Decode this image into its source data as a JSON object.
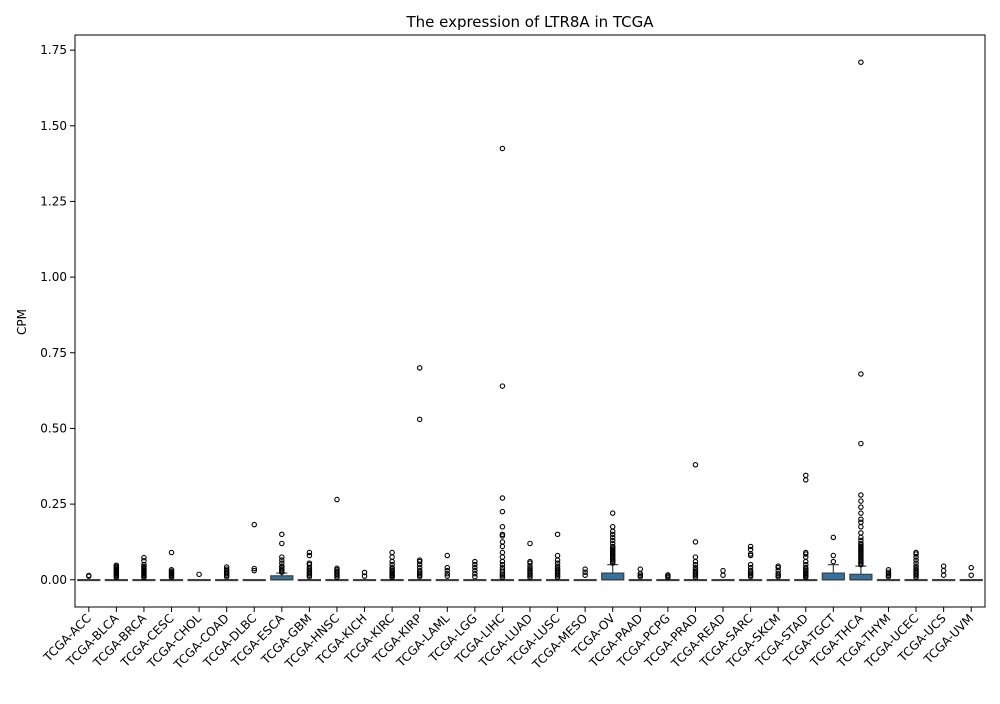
{
  "chart_data": {
    "type": "box",
    "title": "The expression of LTR8A in TCGA",
    "xlabel": "",
    "ylabel": "CPM",
    "ylim": [
      -0.09,
      1.8
    ],
    "yticks": [
      0.0,
      0.25,
      0.5,
      0.75,
      1.0,
      1.25,
      1.5,
      1.75
    ],
    "ytick_labels": [
      "0.00",
      "0.25",
      "0.50",
      "0.75",
      "1.00",
      "1.25",
      "1.50",
      "1.75"
    ],
    "box_color": "#3274a1",
    "categories": [
      "TCGA-ACC",
      "TCGA-BLCA",
      "TCGA-BRCA",
      "TCGA-CESC",
      "TCGA-CHOL",
      "TCGA-COAD",
      "TCGA-DLBC",
      "TCGA-ESCA",
      "TCGA-GBM",
      "TCGA-HNSC",
      "TCGA-KICH",
      "TCGA-KIRC",
      "TCGA-KIRP",
      "TCGA-LAML",
      "TCGA-LGG",
      "TCGA-LIHC",
      "TCGA-LUAD",
      "TCGA-LUSC",
      "TCGA-MESO",
      "TCGA-OV",
      "TCGA-PAAD",
      "TCGA-PCPG",
      "TCGA-PRAD",
      "TCGA-READ",
      "TCGA-SARC",
      "TCGA-SKCM",
      "TCGA-STAD",
      "TCGA-TGCT",
      "TCGA-THCA",
      "TCGA-THYM",
      "TCGA-UCEC",
      "TCGA-UCS",
      "TCGA-UVM"
    ],
    "boxes": [
      {
        "q1": 0,
        "median": 0,
        "q3": 0,
        "whisker_low": 0,
        "whisker_high": 0,
        "outliers": [
          0.012,
          0.014
        ]
      },
      {
        "q1": 0,
        "median": 0,
        "q3": 0,
        "whisker_low": 0,
        "whisker_high": 0,
        "outliers": [
          0.008,
          0.012,
          0.016,
          0.02,
          0.024,
          0.028,
          0.032,
          0.036,
          0.04,
          0.044,
          0.048
        ]
      },
      {
        "q1": 0,
        "median": 0,
        "q3": 0,
        "whisker_low": 0,
        "whisker_high": 0,
        "outliers": [
          0.008,
          0.012,
          0.016,
          0.02,
          0.024,
          0.028,
          0.032,
          0.036,
          0.04,
          0.044,
          0.05,
          0.063,
          0.073
        ]
      },
      {
        "q1": 0,
        "median": 0,
        "q3": 0,
        "whisker_low": 0,
        "whisker_high": 0,
        "outliers": [
          0.008,
          0.012,
          0.016,
          0.02,
          0.024,
          0.028,
          0.033,
          0.09
        ]
      },
      {
        "q1": 0,
        "median": 0,
        "q3": 0,
        "whisker_low": 0,
        "whisker_high": 0,
        "outliers": [
          0.018
        ]
      },
      {
        "q1": 0,
        "median": 0,
        "q3": 0,
        "whisker_low": 0,
        "whisker_high": 0,
        "outliers": [
          0.01,
          0.015,
          0.02,
          0.025,
          0.03,
          0.035,
          0.042
        ]
      },
      {
        "q1": 0,
        "median": 0,
        "q3": 0,
        "whisker_low": 0,
        "whisker_high": 0,
        "outliers": [
          0.03,
          0.037,
          0.182
        ]
      },
      {
        "q1": 0,
        "median": 0,
        "q3": 0.013,
        "whisker_low": 0,
        "whisker_high": 0.022,
        "outliers": [
          0.025,
          0.03,
          0.035,
          0.04,
          0.045,
          0.055,
          0.065,
          0.075,
          0.12,
          0.15
        ]
      },
      {
        "q1": 0,
        "median": 0,
        "q3": 0,
        "whisker_low": 0,
        "whisker_high": 0,
        "outliers": [
          0.01,
          0.015,
          0.02,
          0.025,
          0.03,
          0.035,
          0.04,
          0.05,
          0.055,
          0.08,
          0.09
        ]
      },
      {
        "q1": 0,
        "median": 0,
        "q3": 0,
        "whisker_low": 0,
        "whisker_high": 0,
        "outliers": [
          0.008,
          0.013,
          0.018,
          0.023,
          0.028,
          0.033,
          0.038,
          0.265
        ]
      },
      {
        "q1": 0,
        "median": 0,
        "q3": 0,
        "whisker_low": 0,
        "whisker_high": 0,
        "outliers": [
          0.012,
          0.024
        ]
      },
      {
        "q1": 0,
        "median": 0,
        "q3": 0,
        "whisker_low": 0,
        "whisker_high": 0,
        "outliers": [
          0.008,
          0.012,
          0.016,
          0.02,
          0.025,
          0.03,
          0.035,
          0.04,
          0.05,
          0.06,
          0.075,
          0.09
        ]
      },
      {
        "q1": 0,
        "median": 0,
        "q3": 0,
        "whisker_low": 0,
        "whisker_high": 0,
        "outliers": [
          0.01,
          0.015,
          0.02,
          0.025,
          0.03,
          0.04,
          0.05,
          0.06,
          0.065,
          0.53,
          0.7
        ]
      },
      {
        "q1": 0,
        "median": 0,
        "q3": 0,
        "whisker_low": 0,
        "whisker_high": 0,
        "outliers": [
          0.012,
          0.02,
          0.03,
          0.04,
          0.08
        ]
      },
      {
        "q1": 0,
        "median": 0,
        "q3": 0,
        "whisker_low": 0,
        "whisker_high": 0,
        "outliers": [
          0.01,
          0.02,
          0.03,
          0.04,
          0.05,
          0.06
        ]
      },
      {
        "q1": 0,
        "median": 0,
        "q3": 0,
        "whisker_low": 0,
        "whisker_high": 0,
        "outliers": [
          0.008,
          0.013,
          0.018,
          0.025,
          0.032,
          0.04,
          0.05,
          0.06,
          0.075,
          0.09,
          0.11,
          0.125,
          0.145,
          0.15,
          0.175,
          0.225,
          0.27,
          0.64,
          1.425
        ]
      },
      {
        "q1": 0,
        "median": 0,
        "q3": 0,
        "whisker_low": 0,
        "whisker_high": 0,
        "outliers": [
          0.008,
          0.013,
          0.018,
          0.023,
          0.028,
          0.033,
          0.038,
          0.045,
          0.055,
          0.06,
          0.12
        ]
      },
      {
        "q1": 0,
        "median": 0,
        "q3": 0,
        "whisker_low": 0,
        "whisker_high": 0,
        "outliers": [
          0.008,
          0.013,
          0.018,
          0.023,
          0.028,
          0.033,
          0.038,
          0.045,
          0.055,
          0.065,
          0.08,
          0.15
        ]
      },
      {
        "q1": 0,
        "median": 0,
        "q3": 0,
        "whisker_low": 0,
        "whisker_high": 0,
        "outliers": [
          0.015,
          0.025,
          0.035
        ]
      },
      {
        "q1": 0,
        "median": 0,
        "q3": 0.022,
        "whisker_low": 0,
        "whisker_high": 0.05,
        "outliers": [
          0.055,
          0.06,
          0.065,
          0.07,
          0.075,
          0.08,
          0.085,
          0.09,
          0.095,
          0.1,
          0.105,
          0.11,
          0.12,
          0.13,
          0.14,
          0.15,
          0.16,
          0.175,
          0.22
        ]
      },
      {
        "q1": 0,
        "median": 0,
        "q3": 0,
        "whisker_low": 0,
        "whisker_high": 0,
        "outliers": [
          0.01,
          0.015,
          0.02,
          0.035
        ]
      },
      {
        "q1": 0,
        "median": 0,
        "q3": 0,
        "whisker_low": 0,
        "whisker_high": 0,
        "outliers": [
          0.008,
          0.012,
          0.016
        ]
      },
      {
        "q1": 0,
        "median": 0,
        "q3": 0,
        "whisker_low": 0,
        "whisker_high": 0,
        "outliers": [
          0.008,
          0.013,
          0.018,
          0.023,
          0.028,
          0.033,
          0.04,
          0.05,
          0.06,
          0.075,
          0.125,
          0.38
        ]
      },
      {
        "q1": 0,
        "median": 0,
        "q3": 0,
        "whisker_low": 0,
        "whisker_high": 0,
        "outliers": [
          0.015,
          0.03
        ]
      },
      {
        "q1": 0,
        "median": 0,
        "q3": 0,
        "whisker_low": 0,
        "whisker_high": 0,
        "outliers": [
          0.01,
          0.015,
          0.02,
          0.025,
          0.03,
          0.04,
          0.05,
          0.08,
          0.085,
          0.1,
          0.11
        ]
      },
      {
        "q1": 0,
        "median": 0,
        "q3": 0,
        "whisker_low": 0,
        "whisker_high": 0,
        "outliers": [
          0.01,
          0.015,
          0.02,
          0.03,
          0.04,
          0.045
        ]
      },
      {
        "q1": 0,
        "median": 0,
        "q3": 0,
        "whisker_low": 0,
        "whisker_high": 0,
        "outliers": [
          0.008,
          0.012,
          0.016,
          0.02,
          0.025,
          0.03,
          0.035,
          0.04,
          0.05,
          0.06,
          0.075,
          0.085,
          0.09,
          0.33,
          0.345
        ]
      },
      {
        "q1": 0,
        "median": 0,
        "q3": 0.022,
        "whisker_low": 0,
        "whisker_high": 0.05,
        "outliers": [
          0.06,
          0.08,
          0.14
        ]
      },
      {
        "q1": 0,
        "median": 0,
        "q3": 0.018,
        "whisker_low": 0,
        "whisker_high": 0.045,
        "outliers": [
          0.05,
          0.055,
          0.06,
          0.065,
          0.07,
          0.075,
          0.08,
          0.085,
          0.09,
          0.095,
          0.1,
          0.105,
          0.11,
          0.115,
          0.12,
          0.13,
          0.14,
          0.155,
          0.175,
          0.19,
          0.2,
          0.22,
          0.24,
          0.26,
          0.28,
          0.45,
          0.68,
          1.71
        ]
      },
      {
        "q1": 0,
        "median": 0,
        "q3": 0,
        "whisker_low": 0,
        "whisker_high": 0,
        "outliers": [
          0.01,
          0.015,
          0.02,
          0.025,
          0.033
        ]
      },
      {
        "q1": 0,
        "median": 0,
        "q3": 0,
        "whisker_low": 0,
        "whisker_high": 0,
        "outliers": [
          0.008,
          0.013,
          0.018,
          0.023,
          0.028,
          0.033,
          0.038,
          0.045,
          0.055,
          0.065,
          0.075,
          0.085,
          0.09
        ]
      },
      {
        "q1": 0,
        "median": 0,
        "q3": 0,
        "whisker_low": 0,
        "whisker_high": 0,
        "outliers": [
          0.015,
          0.03,
          0.045
        ]
      },
      {
        "q1": 0,
        "median": 0,
        "q3": 0,
        "whisker_low": 0,
        "whisker_high": 0,
        "outliers": [
          0.015,
          0.04
        ]
      }
    ]
  }
}
